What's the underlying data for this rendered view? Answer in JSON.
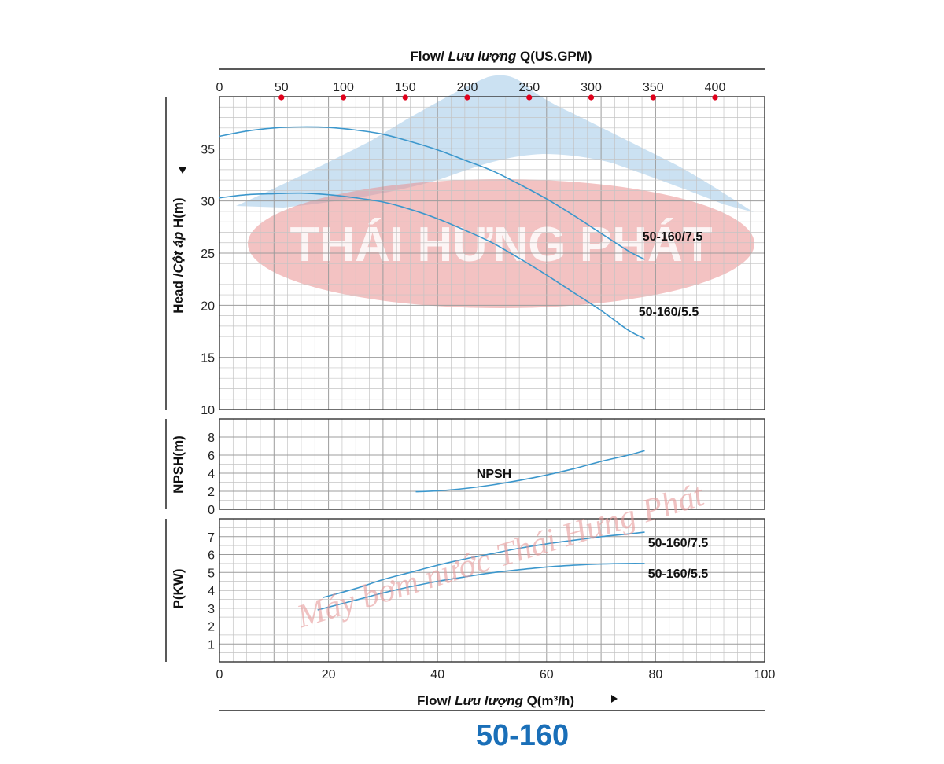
{
  "watermark": {
    "brand": "THÁI HƯNG PHÁT",
    "slogan": "Máy bơm nước Thái Hưng Phát"
  },
  "colors": {
    "curve": "#3c97cc",
    "grid": "#c4c4c4",
    "frame": "#333333",
    "marker": "#e0001b",
    "model": "#1a6fb8",
    "watermark_ellipse": "#e98f8f",
    "watermark_mountain": "#8cbde3"
  },
  "chart_data": [
    {
      "panel": "head",
      "type": "line",
      "top_axis": {
        "label_prefix": "Flow/ ",
        "label_italic": "Lưu lượng",
        "label_suffix": " Q(US.GPM)",
        "ticks": [
          0,
          50,
          100,
          150,
          200,
          250,
          300,
          350,
          400
        ],
        "gpm_per_m3h": 4.4
      },
      "x_range": [
        0,
        100
      ],
      "ylabel_prefix": "Head /",
      "ylabel_italic": "Cột áp",
      "ylabel_suffix": " H(m)",
      "y_range": [
        10,
        40
      ],
      "y_ticks": [
        10,
        15,
        20,
        25,
        30,
        35
      ],
      "series": [
        {
          "name": "50-160/7.5",
          "x": [
            0,
            5,
            10,
            15,
            20,
            25,
            30,
            35,
            40,
            45,
            50,
            55,
            60,
            65,
            70,
            75,
            78
          ],
          "y": [
            36.2,
            36.7,
            37.0,
            37.1,
            37.05,
            36.8,
            36.4,
            35.7,
            34.9,
            33.9,
            32.9,
            31.6,
            30.2,
            28.6,
            26.9,
            25.2,
            24.4
          ]
        },
        {
          "name": "50-160/5.5",
          "x": [
            0,
            5,
            10,
            15,
            20,
            25,
            30,
            35,
            40,
            45,
            50,
            55,
            60,
            65,
            70,
            75,
            78
          ],
          "y": [
            30.3,
            30.6,
            30.7,
            30.75,
            30.6,
            30.3,
            29.9,
            29.2,
            28.3,
            27.2,
            26.0,
            24.5,
            22.9,
            21.2,
            19.5,
            17.6,
            16.8
          ]
        }
      ]
    },
    {
      "panel": "npsh",
      "type": "line",
      "x_range": [
        0,
        100
      ],
      "ylabel": "NPSH(m)",
      "y_range": [
        0,
        10
      ],
      "y_ticks": [
        0,
        2,
        4,
        6,
        8
      ],
      "series": [
        {
          "name": "NPSH",
          "x": [
            36,
            40,
            45,
            50,
            55,
            60,
            65,
            70,
            75,
            78
          ],
          "y": [
            1.95,
            2.05,
            2.3,
            2.7,
            3.2,
            3.8,
            4.5,
            5.3,
            6.0,
            6.5
          ]
        }
      ]
    },
    {
      "panel": "power",
      "type": "line",
      "x_range": [
        0,
        100
      ],
      "xlabel_prefix": "Flow/ ",
      "xlabel_italic": "Lưu lượng",
      "xlabel_suffix": " Q(m³/h)",
      "x_ticks": [
        0,
        20,
        40,
        60,
        80,
        100
      ],
      "ylabel": "P(KW)",
      "y_range": [
        0,
        8
      ],
      "y_ticks": [
        1,
        2,
        3,
        4,
        5,
        6,
        7
      ],
      "series": [
        {
          "name": "50-160/7.5",
          "x": [
            19,
            25,
            30,
            35,
            40,
            45,
            50,
            55,
            60,
            65,
            70,
            75,
            78
          ],
          "y": [
            3.6,
            4.1,
            4.6,
            5.0,
            5.4,
            5.75,
            6.05,
            6.35,
            6.6,
            6.8,
            7.0,
            7.15,
            7.25
          ]
        },
        {
          "name": "50-160/5.5",
          "x": [
            18,
            25,
            30,
            35,
            40,
            45,
            50,
            55,
            60,
            65,
            70,
            75,
            78
          ],
          "y": [
            2.9,
            3.45,
            3.85,
            4.2,
            4.5,
            4.75,
            4.98,
            5.15,
            5.3,
            5.4,
            5.47,
            5.5,
            5.5
          ]
        }
      ]
    }
  ],
  "model_title": "50-160"
}
